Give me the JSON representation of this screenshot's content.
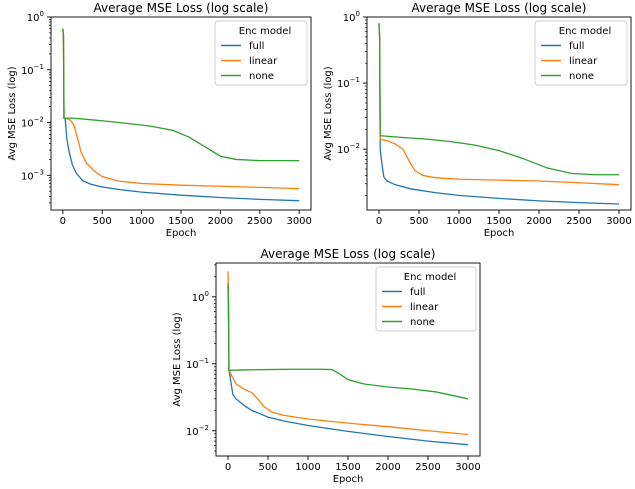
{
  "chart_data": [
    {
      "type": "line",
      "title": "Average MSE Loss (log scale)",
      "xlabel": "Epoch",
      "ylabel": "Avg MSE Loss (log)",
      "yscale": "log",
      "xlim": [
        -150,
        3150
      ],
      "ylim": [
        0.00022,
        1.0
      ],
      "xticks": [
        0,
        500,
        1000,
        1500,
        2000,
        2500,
        3000
      ],
      "xtick_labels": [
        "0",
        "500",
        "1000",
        "1500",
        "2000",
        "2500",
        "3000"
      ],
      "yticks": [
        0.001,
        0.01,
        0.1,
        1
      ],
      "ytick_labels": [
        {
          "base": "10",
          "exp": "−3"
        },
        {
          "base": "10",
          "exp": "−2"
        },
        {
          "base": "10",
          "exp": "−1"
        },
        {
          "base": "10",
          "exp": "0"
        }
      ],
      "grid": false,
      "legend": {
        "title": "Enc model",
        "position": "top-right"
      },
      "series": [
        {
          "name": "full",
          "color": "#1f77b4",
          "points": [
            [
              0,
              0.6
            ],
            [
              8,
              0.45
            ],
            [
              15,
              0.012
            ],
            [
              30,
              0.012
            ],
            [
              50,
              0.005
            ],
            [
              80,
              0.0028
            ],
            [
              120,
              0.0016
            ],
            [
              170,
              0.0011
            ],
            [
              250,
              0.0008
            ],
            [
              350,
              0.00068
            ],
            [
              500,
              0.0006
            ],
            [
              750,
              0.00053
            ],
            [
              1000,
              0.00048
            ],
            [
              1500,
              0.00042
            ],
            [
              2000,
              0.00038
            ],
            [
              2500,
              0.00035
            ],
            [
              3000,
              0.00033
            ]
          ]
        },
        {
          "name": "linear",
          "color": "#ff7f0e",
          "points": [
            [
              0,
              0.6
            ],
            [
              8,
              0.45
            ],
            [
              15,
              0.012
            ],
            [
              50,
              0.012
            ],
            [
              100,
              0.011
            ],
            [
              140,
              0.009
            ],
            [
              180,
              0.0055
            ],
            [
              230,
              0.0028
            ],
            [
              300,
              0.0017
            ],
            [
              400,
              0.0012
            ],
            [
              500,
              0.00095
            ],
            [
              700,
              0.00078
            ],
            [
              1000,
              0.0007
            ],
            [
              1500,
              0.00065
            ],
            [
              2000,
              0.00062
            ],
            [
              2500,
              0.00059
            ],
            [
              3000,
              0.00056
            ]
          ]
        },
        {
          "name": "none",
          "color": "#2ca02c",
          "points": [
            [
              0,
              0.6
            ],
            [
              8,
              0.45
            ],
            [
              15,
              0.012
            ],
            [
              100,
              0.0122
            ],
            [
              300,
              0.0115
            ],
            [
              500,
              0.0108
            ],
            [
              800,
              0.0097
            ],
            [
              1100,
              0.0086
            ],
            [
              1400,
              0.0071
            ],
            [
              1600,
              0.0053
            ],
            [
              1800,
              0.0035
            ],
            [
              2000,
              0.0023
            ],
            [
              2200,
              0.002
            ],
            [
              2500,
              0.0019
            ],
            [
              3000,
              0.0019
            ]
          ]
        }
      ]
    },
    {
      "type": "line",
      "title": "Average MSE Loss (log scale)",
      "xlabel": "Epoch",
      "ylabel": "Avg MSE Loss (log)",
      "yscale": "log",
      "xlim": [
        -150,
        3150
      ],
      "ylim": [
        0.0012,
        1.0
      ],
      "xticks": [
        0,
        500,
        1000,
        1500,
        2000,
        2500,
        3000
      ],
      "xtick_labels": [
        "0",
        "500",
        "1000",
        "1500",
        "2000",
        "2500",
        "3000"
      ],
      "yticks": [
        0.01,
        0.1,
        1
      ],
      "ytick_labels": [
        {
          "base": "10",
          "exp": "−2"
        },
        {
          "base": "10",
          "exp": "−1"
        },
        {
          "base": "10",
          "exp": "0"
        }
      ],
      "grid": false,
      "legend": {
        "title": "Enc model",
        "position": "top-right"
      },
      "series": [
        {
          "name": "full",
          "color": "#1f77b4",
          "points": [
            [
              0,
              0.8
            ],
            [
              8,
              0.5
            ],
            [
              15,
              0.01
            ],
            [
              30,
              0.007
            ],
            [
              60,
              0.0038
            ],
            [
              100,
              0.0033
            ],
            [
              200,
              0.0029
            ],
            [
              400,
              0.0025
            ],
            [
              700,
              0.0022
            ],
            [
              1000,
              0.002
            ],
            [
              1500,
              0.0018
            ],
            [
              2000,
              0.00165
            ],
            [
              2500,
              0.00155
            ],
            [
              3000,
              0.00148
            ]
          ]
        },
        {
          "name": "linear",
          "color": "#ff7f0e",
          "points": [
            [
              0,
              0.8
            ],
            [
              8,
              0.5
            ],
            [
              15,
              0.014
            ],
            [
              100,
              0.0135
            ],
            [
              200,
              0.012
            ],
            [
              300,
              0.01
            ],
            [
              380,
              0.0065
            ],
            [
              450,
              0.0047
            ],
            [
              550,
              0.004
            ],
            [
              700,
              0.0037
            ],
            [
              1000,
              0.0035
            ],
            [
              1500,
              0.0034
            ],
            [
              2000,
              0.0033
            ],
            [
              2500,
              0.0031
            ],
            [
              3000,
              0.0029
            ]
          ]
        },
        {
          "name": "none",
          "color": "#2ca02c",
          "points": [
            [
              0,
              0.8
            ],
            [
              8,
              0.5
            ],
            [
              15,
              0.016
            ],
            [
              300,
              0.015
            ],
            [
              600,
              0.0142
            ],
            [
              900,
              0.013
            ],
            [
              1200,
              0.0115
            ],
            [
              1500,
              0.0095
            ],
            [
              1800,
              0.0072
            ],
            [
              2100,
              0.0052
            ],
            [
              2400,
              0.0043
            ],
            [
              2700,
              0.0041
            ],
            [
              3000,
              0.0041
            ]
          ]
        }
      ]
    },
    {
      "type": "line",
      "title": "Average MSE Loss (log scale)",
      "xlabel": "Epoch",
      "ylabel": "Avg MSE Loss (log)",
      "yscale": "log",
      "xlim": [
        -150,
        3150
      ],
      "ylim": [
        0.0042,
        3.2
      ],
      "xticks": [
        0,
        500,
        1000,
        1500,
        2000,
        2500,
        3000
      ],
      "xtick_labels": [
        "0",
        "500",
        "1000",
        "1500",
        "2000",
        "2500",
        "3000"
      ],
      "yticks": [
        0.01,
        0.1,
        1
      ],
      "ytick_labels": [
        {
          "base": "10",
          "exp": "−2"
        },
        {
          "base": "10",
          "exp": "−1"
        },
        {
          "base": "10",
          "exp": "0"
        }
      ],
      "grid": false,
      "legend": {
        "title": "Enc model",
        "position": "top-right"
      },
      "series": [
        {
          "name": "full",
          "color": "#1f77b4",
          "points": [
            [
              0,
              1.4
            ],
            [
              5,
              0.9
            ],
            [
              12,
              0.08
            ],
            [
              30,
              0.06
            ],
            [
              60,
              0.035
            ],
            [
              100,
              0.03
            ],
            [
              200,
              0.024
            ],
            [
              300,
              0.02
            ],
            [
              400,
              0.018
            ],
            [
              500,
              0.016
            ],
            [
              700,
              0.014
            ],
            [
              1000,
              0.012
            ],
            [
              1500,
              0.0098
            ],
            [
              2000,
              0.0082
            ],
            [
              2500,
              0.007
            ],
            [
              3000,
              0.0062
            ]
          ]
        },
        {
          "name": "linear",
          "color": "#ff7f0e",
          "points": [
            [
              0,
              2.4
            ],
            [
              5,
              1.2
            ],
            [
              12,
              0.08
            ],
            [
              50,
              0.065
            ],
            [
              100,
              0.05
            ],
            [
              200,
              0.042
            ],
            [
              300,
              0.037
            ],
            [
              370,
              0.03
            ],
            [
              450,
              0.023
            ],
            [
              550,
              0.019
            ],
            [
              700,
              0.017
            ],
            [
              1000,
              0.015
            ],
            [
              1500,
              0.013
            ],
            [
              2000,
              0.0115
            ],
            [
              2500,
              0.01
            ],
            [
              3000,
              0.0088
            ]
          ]
        },
        {
          "name": "none",
          "color": "#2ca02c",
          "points": [
            [
              0,
              1.6
            ],
            [
              5,
              0.9
            ],
            [
              12,
              0.08
            ],
            [
              200,
              0.081
            ],
            [
              500,
              0.082
            ],
            [
              800,
              0.083
            ],
            [
              1000,
              0.083
            ],
            [
              1150,
              0.083
            ],
            [
              1300,
              0.082
            ],
            [
              1400,
              0.07
            ],
            [
              1500,
              0.058
            ],
            [
              1700,
              0.05
            ],
            [
              2000,
              0.045
            ],
            [
              2300,
              0.042
            ],
            [
              2600,
              0.038
            ],
            [
              3000,
              0.03
            ]
          ]
        }
      ]
    }
  ]
}
